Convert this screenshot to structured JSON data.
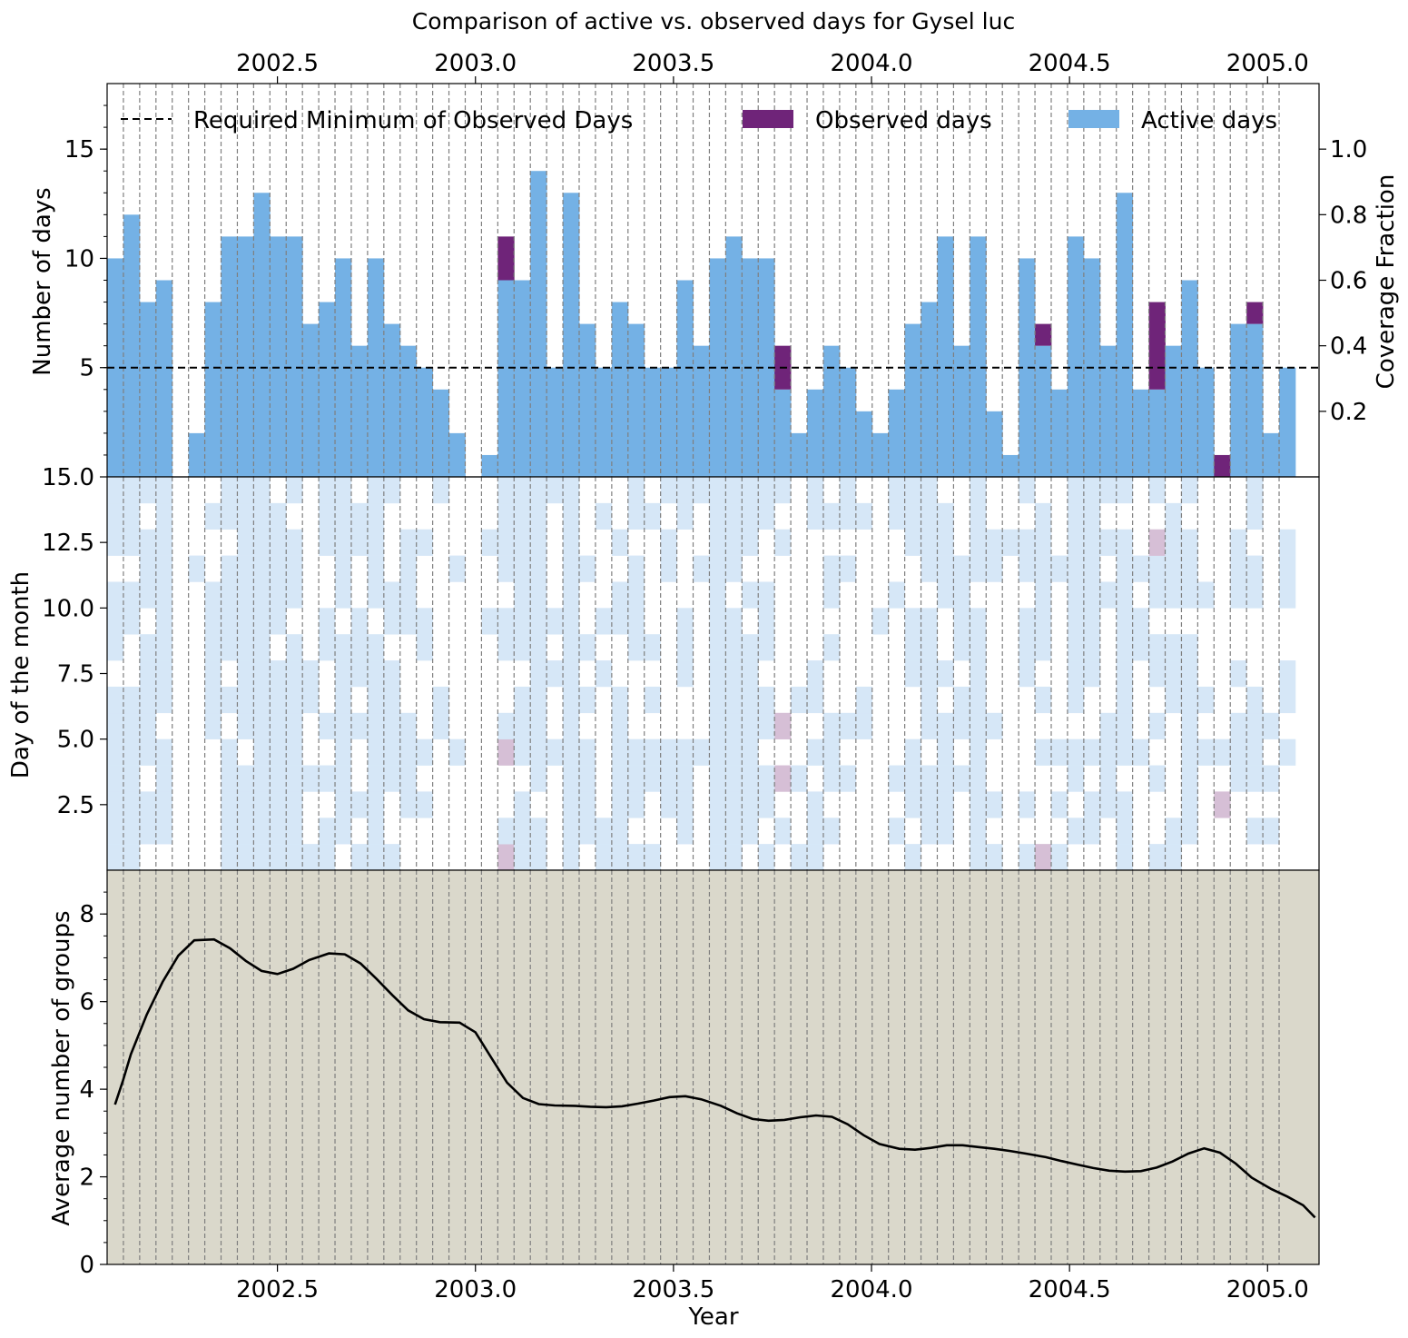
{
  "figure": {
    "title": "Comparison of active vs. observed days for Gysel luc"
  },
  "colors": {
    "active": "#74b1e5",
    "observed": "#6f2479",
    "heat_active": "#d6e7f7",
    "heat_observed": "#d6bfd6",
    "bottom_bg": "#dad8cb",
    "threshold_line": "#000000",
    "grid": "#7f7f7f"
  },
  "chart_data": [
    {
      "type": "bar",
      "panel": "top",
      "ylabel": "Number of days",
      "y2label": "Coverage Fraction",
      "xlim": [
        2002.07,
        2005.13
      ],
      "ylim": [
        0,
        18
      ],
      "y2lim": [
        0,
        1.2
      ],
      "yticks": [
        "5",
        "10",
        "15"
      ],
      "y2ticks": [
        "0.2",
        "0.4",
        "0.6",
        "0.8",
        "1.0"
      ],
      "xticks_top": [
        "2002.5",
        "2003.0",
        "2003.5",
        "2004.0",
        "2004.5",
        "2005.0"
      ],
      "threshold": 5,
      "legend": [
        "Required Minimum of Observed Days",
        "Observed days",
        "Active days"
      ],
      "legend_position": "top",
      "x_start": 2002.07,
      "bin_width": 0.0411,
      "active_days": [
        10,
        12,
        8,
        9,
        0,
        2,
        8,
        11,
        11,
        13,
        11,
        11,
        7,
        8,
        10,
        6,
        10,
        7,
        6,
        5,
        4,
        2,
        0,
        1,
        11,
        9,
        14,
        5,
        13,
        7,
        5,
        8,
        7,
        5,
        5,
        9,
        6,
        10,
        11,
        10,
        10,
        6,
        2,
        4,
        6,
        5,
        3,
        2,
        4,
        7,
        8,
        11,
        6,
        11,
        3,
        1,
        10,
        7,
        4,
        11,
        10,
        6,
        13,
        4,
        8,
        6,
        9,
        5,
        1,
        7,
        8,
        2,
        5
      ],
      "observed_days": [
        0,
        0,
        0,
        0,
        0,
        0,
        0,
        0,
        0,
        0,
        0,
        0,
        0,
        0,
        0,
        0,
        0,
        0,
        0,
        0,
        0,
        0,
        0,
        0,
        2,
        0,
        0,
        0,
        0,
        0,
        0,
        0,
        0,
        0,
        0,
        0,
        0,
        0,
        0,
        0,
        0,
        2,
        0,
        0,
        0,
        0,
        0,
        0,
        0,
        0,
        0,
        0,
        0,
        0,
        0,
        0,
        0,
        1,
        0,
        0,
        0,
        0,
        0,
        0,
        4,
        0,
        0,
        0,
        1,
        0,
        1,
        0,
        0
      ]
    },
    {
      "type": "heatmap",
      "panel": "middle",
      "ylabel": "Day of the month",
      "ylim": [
        0,
        15
      ],
      "yticks": [
        "2.5",
        "5.0",
        "7.5",
        "10.0",
        "12.5",
        "15.0"
      ],
      "description": "Per-bin daily activity pattern (days 1-15); light blue = active day, light purple = observed day"
    },
    {
      "type": "line",
      "panel": "bottom",
      "xlabel": "Year",
      "ylabel": "Average number of groups",
      "xlim": [
        2002.07,
        2005.13
      ],
      "ylim": [
        0,
        9
      ],
      "yticks": [
        "0",
        "2",
        "4",
        "6",
        "8"
      ],
      "xticks": [
        "2002.5",
        "2003.0",
        "2003.5",
        "2004.0",
        "2004.5",
        "2005.0"
      ],
      "x": [
        2002.09,
        2002.11,
        2002.13,
        2002.17,
        2002.21,
        2002.25,
        2002.29,
        2002.34,
        2002.38,
        2002.42,
        2002.46,
        2002.5,
        2002.54,
        2002.58,
        2002.63,
        2002.67,
        2002.71,
        2002.75,
        2002.79,
        2002.83,
        2002.87,
        2002.91,
        2002.96,
        2003.0,
        2003.04,
        2003.08,
        2003.12,
        2003.16,
        2003.2,
        2003.25,
        2003.29,
        2003.33,
        2003.37,
        2003.41,
        2003.45,
        2003.49,
        2003.53,
        2003.57,
        2003.62,
        2003.66,
        2003.7,
        2003.74,
        2003.78,
        2003.82,
        2003.86,
        2003.9,
        2003.94,
        2003.98,
        2004.02,
        2004.07,
        2004.11,
        2004.15,
        2004.19,
        2004.23,
        2004.27,
        2004.31,
        2004.35,
        2004.39,
        2004.44,
        2004.48,
        2004.52,
        2004.56,
        2004.6,
        2004.64,
        2004.68,
        2004.72,
        2004.76,
        2004.8,
        2004.84,
        2004.88,
        2004.92,
        2004.96,
        2005.01,
        2005.05,
        2005.09,
        2005.12
      ],
      "y": [
        3.65,
        4.2,
        4.8,
        5.7,
        6.45,
        7.05,
        7.4,
        7.42,
        7.22,
        6.93,
        6.7,
        6.63,
        6.75,
        6.95,
        7.1,
        7.08,
        6.87,
        6.52,
        6.15,
        5.8,
        5.6,
        5.53,
        5.52,
        5.3,
        4.72,
        4.15,
        3.8,
        3.66,
        3.63,
        3.62,
        3.6,
        3.59,
        3.61,
        3.67,
        3.74,
        3.82,
        3.84,
        3.77,
        3.62,
        3.45,
        3.32,
        3.28,
        3.3,
        3.36,
        3.4,
        3.37,
        3.2,
        2.95,
        2.75,
        2.64,
        2.62,
        2.66,
        2.72,
        2.72,
        2.68,
        2.64,
        2.59,
        2.53,
        2.45,
        2.36,
        2.28,
        2.2,
        2.14,
        2.12,
        2.13,
        2.21,
        2.35,
        2.53,
        2.65,
        2.55,
        2.3,
        1.98,
        1.72,
        1.55,
        1.35,
        1.07
      ]
    }
  ]
}
